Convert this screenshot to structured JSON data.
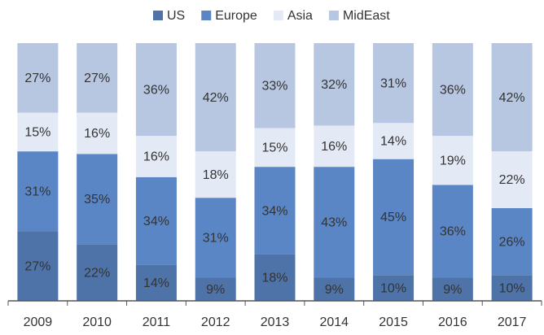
{
  "chart_data": {
    "type": "stacked_bar",
    "categories": [
      "2009",
      "2010",
      "2011",
      "2012",
      "2013",
      "2014",
      "2015",
      "2016",
      "2017"
    ],
    "series": [
      {
        "name": "US",
        "color": "#4e73a8",
        "values": [
          27,
          22,
          14,
          9,
          18,
          9,
          10,
          9,
          10
        ],
        "value_labels": [
          "27%",
          "22%",
          "14%",
          "9%",
          "18%",
          "9%",
          "10%",
          "9%",
          "10%"
        ]
      },
      {
        "name": "Europe",
        "color": "#5b86c5",
        "values": [
          31,
          35,
          34,
          31,
          34,
          43,
          45,
          36,
          26
        ],
        "value_labels": [
          "31%",
          "35%",
          "34%",
          "31%",
          "34%",
          "43%",
          "45%",
          "36%",
          "26%"
        ]
      },
      {
        "name": "Asia",
        "color": "#e4eaf5",
        "values": [
          15,
          16,
          16,
          18,
          15,
          16,
          14,
          19,
          22
        ],
        "value_labels": [
          "15%",
          "16%",
          "16%",
          "18%",
          "15%",
          "16%",
          "14%",
          "19%",
          "22%"
        ]
      },
      {
        "name": "MidEast",
        "color": "#b7c7e2",
        "values": [
          27,
          27,
          36,
          42,
          33,
          32,
          31,
          36,
          42
        ],
        "value_labels": [
          "27%",
          "27%",
          "36%",
          "42%",
          "33%",
          "32%",
          "31%",
          "36%",
          "42%"
        ]
      }
    ],
    "ylim": [
      0,
      100
    ],
    "legend": "top"
  }
}
